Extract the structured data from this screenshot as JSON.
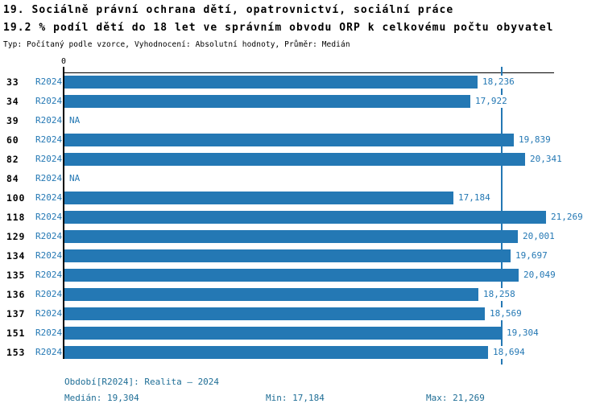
{
  "report": {
    "title": "19. Sociálně právní ochrana dětí, opatrovnictví, sociální práce",
    "subtitle": "19.2 % podíl dětí do 18 let ve správním obvodu ORP k celkovému počtu obyvatel",
    "meta": "Typ: Počítaný podle vzorce, Vyhodnocení: Absolutní hodnoty, Průměr: Medián"
  },
  "colors": {
    "accent": "#2478b4",
    "footer_text": "#1f6e96",
    "axis": "#000000",
    "text": "#000000"
  },
  "chart_data": {
    "type": "bar",
    "orientation": "horizontal",
    "axis_top_tick_label": "0",
    "xlim": [
      0,
      21600
    ],
    "grid": false,
    "series_name": "R2024",
    "categories": [
      "33",
      "34",
      "39",
      "60",
      "82",
      "84",
      "100",
      "118",
      "129",
      "134",
      "135",
      "136",
      "137",
      "151",
      "153"
    ],
    "rows": [
      {
        "id": "33",
        "period": "R2024",
        "value": 18236,
        "label": "18,236"
      },
      {
        "id": "34",
        "period": "R2024",
        "value": 17922,
        "label": "17,922"
      },
      {
        "id": "39",
        "period": "R2024",
        "value": null,
        "label": "NA"
      },
      {
        "id": "60",
        "period": "R2024",
        "value": 19839,
        "label": "19,839"
      },
      {
        "id": "82",
        "period": "R2024",
        "value": 20341,
        "label": "20,341"
      },
      {
        "id": "84",
        "period": "R2024",
        "value": null,
        "label": "NA"
      },
      {
        "id": "100",
        "period": "R2024",
        "value": 17184,
        "label": "17,184"
      },
      {
        "id": "118",
        "period": "R2024",
        "value": 21269,
        "label": "21,269"
      },
      {
        "id": "129",
        "period": "R2024",
        "value": 20001,
        "label": "20,001"
      },
      {
        "id": "134",
        "period": "R2024",
        "value": 19697,
        "label": "19,697"
      },
      {
        "id": "135",
        "period": "R2024",
        "value": 20049,
        "label": "20,049"
      },
      {
        "id": "136",
        "period": "R2024",
        "value": 18258,
        "label": "18,258"
      },
      {
        "id": "137",
        "period": "R2024",
        "value": 18569,
        "label": "18,569"
      },
      {
        "id": "151",
        "period": "R2024",
        "value": 19304,
        "label": "19,304"
      },
      {
        "id": "153",
        "period": "R2024",
        "value": 18694,
        "label": "18,694"
      }
    ],
    "median_value": 19304,
    "min_value": 17184,
    "max_value": 21269
  },
  "footer": {
    "period_line": "Období[R2024]: Realita – 2024",
    "median_line": "Medián: 19,304",
    "min_line": "Min: 17,184",
    "max_line": "Max: 21,269"
  }
}
